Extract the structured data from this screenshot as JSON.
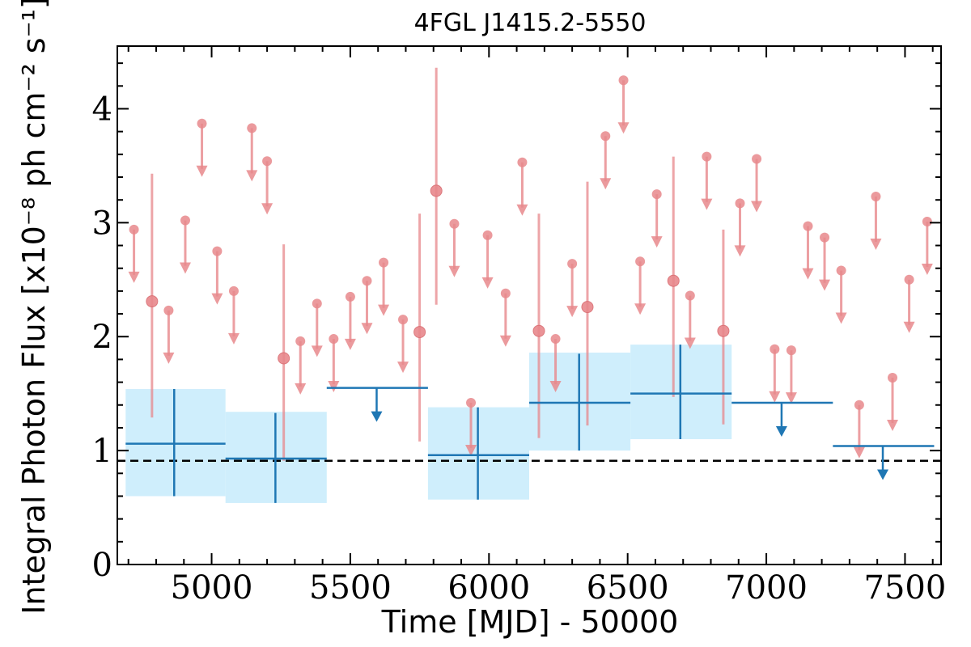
{
  "chart_data": {
    "type": "scatter",
    "title": "4FGL J1415.2-5550",
    "xlabel": "Time [MJD] - 50000",
    "ylabel": "Integral Photon Flux [x10⁻⁸ ph cm⁻² s⁻¹]",
    "xlim": [
      4660,
      7630
    ],
    "ylim": [
      0,
      4.55
    ],
    "xticks": [
      5000,
      5500,
      6000,
      6500,
      7000,
      7500
    ],
    "yticks": [
      0,
      1,
      2,
      3,
      4
    ],
    "grid": false,
    "reference_line": {
      "y": 0.91,
      "style": "dashed",
      "color": "#000000"
    },
    "colors": {
      "fine_bins": "#e8888c",
      "coarse_bins": "#1f77b4",
      "coarse_band": "#cfeefc"
    },
    "series": [
      {
        "kind": "fine-bin detections",
        "points": [
          {
            "x": 4785,
            "y": 2.31,
            "lo": 1.29,
            "hi": 3.43
          },
          {
            "x": 5260,
            "y": 1.81,
            "lo": 0.91,
            "hi": 2.81
          },
          {
            "x": 5750,
            "y": 2.04,
            "lo": 1.08,
            "hi": 3.08
          },
          {
            "x": 5810,
            "y": 3.28,
            "lo": 2.28,
            "hi": 4.36
          },
          {
            "x": 6180,
            "y": 2.05,
            "lo": 1.11,
            "hi": 3.08
          },
          {
            "x": 6355,
            "y": 2.26,
            "lo": 1.22,
            "hi": 3.36
          },
          {
            "x": 6665,
            "y": 2.49,
            "lo": 1.47,
            "hi": 3.58
          },
          {
            "x": 6845,
            "y": 2.05,
            "lo": 1.23,
            "hi": 2.94
          }
        ]
      },
      {
        "kind": "fine-bin upper limits",
        "points": [
          {
            "x": 4720,
            "y": 2.94
          },
          {
            "x": 4845,
            "y": 2.23
          },
          {
            "x": 4905,
            "y": 3.02
          },
          {
            "x": 4965,
            "y": 3.87
          },
          {
            "x": 5020,
            "y": 2.75
          },
          {
            "x": 5080,
            "y": 2.4
          },
          {
            "x": 5145,
            "y": 3.83
          },
          {
            "x": 5200,
            "y": 3.54
          },
          {
            "x": 5320,
            "y": 1.96
          },
          {
            "x": 5380,
            "y": 2.29
          },
          {
            "x": 5440,
            "y": 1.98
          },
          {
            "x": 5500,
            "y": 2.35
          },
          {
            "x": 5560,
            "y": 2.49
          },
          {
            "x": 5620,
            "y": 2.65
          },
          {
            "x": 5690,
            "y": 2.15
          },
          {
            "x": 5875,
            "y": 2.99
          },
          {
            "x": 5935,
            "y": 1.42
          },
          {
            "x": 5995,
            "y": 2.89
          },
          {
            "x": 6060,
            "y": 2.38
          },
          {
            "x": 6120,
            "y": 3.53
          },
          {
            "x": 6240,
            "y": 1.98
          },
          {
            "x": 6300,
            "y": 2.64
          },
          {
            "x": 6420,
            "y": 3.76
          },
          {
            "x": 6485,
            "y": 4.25
          },
          {
            "x": 6545,
            "y": 2.66
          },
          {
            "x": 6605,
            "y": 3.25
          },
          {
            "x": 6725,
            "y": 2.36
          },
          {
            "x": 6785,
            "y": 3.58
          },
          {
            "x": 6905,
            "y": 3.17
          },
          {
            "x": 6965,
            "y": 3.56
          },
          {
            "x": 7030,
            "y": 1.89
          },
          {
            "x": 7090,
            "y": 1.88
          },
          {
            "x": 7150,
            "y": 2.97
          },
          {
            "x": 7210,
            "y": 2.87
          },
          {
            "x": 7270,
            "y": 2.58
          },
          {
            "x": 7335,
            "y": 1.4
          },
          {
            "x": 7395,
            "y": 3.23
          },
          {
            "x": 7455,
            "y": 1.64
          },
          {
            "x": 7515,
            "y": 2.5
          },
          {
            "x": 7580,
            "y": 3.01
          }
        ]
      },
      {
        "kind": "coarse-bin detections",
        "points": [
          {
            "x": 4865,
            "xlo": 4690,
            "xhi": 5050,
            "y": 1.06,
            "lo": 0.6,
            "hi": 1.54,
            "band_lo": 0.6,
            "band_hi": 1.54
          },
          {
            "x": 5230,
            "xlo": 5050,
            "xhi": 5415,
            "y": 0.93,
            "lo": 0.54,
            "hi": 1.33,
            "band_lo": 0.54,
            "band_hi": 1.34
          },
          {
            "x": 5960,
            "xlo": 5780,
            "xhi": 6145,
            "y": 0.96,
            "lo": 0.57,
            "hi": 1.38,
            "band_lo": 0.57,
            "band_hi": 1.38
          },
          {
            "x": 6325,
            "xlo": 6145,
            "xhi": 6510,
            "y": 1.42,
            "lo": 1.0,
            "hi": 1.85,
            "band_lo": 1.0,
            "band_hi": 1.86
          },
          {
            "x": 6690,
            "xlo": 6510,
            "xhi": 6875,
            "y": 1.5,
            "lo": 1.1,
            "hi": 1.93,
            "band_lo": 1.1,
            "band_hi": 1.93
          }
        ]
      },
      {
        "kind": "coarse-bin upper limits",
        "points": [
          {
            "x": 5595,
            "xlo": 5415,
            "xhi": 5780,
            "y": 1.55
          },
          {
            "x": 7055,
            "xlo": 6875,
            "xhi": 7240,
            "y": 1.42
          },
          {
            "x": 7420,
            "xlo": 7240,
            "xhi": 7605,
            "y": 1.04
          }
        ]
      }
    ]
  }
}
